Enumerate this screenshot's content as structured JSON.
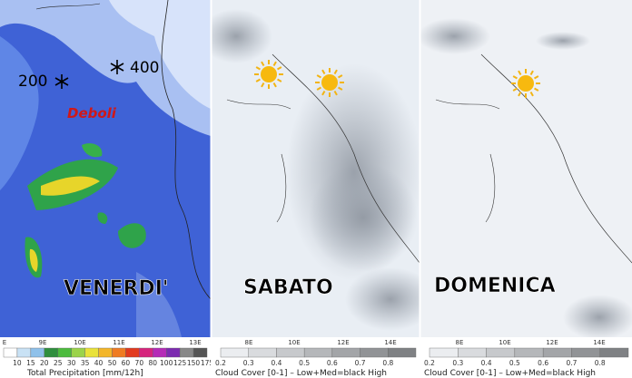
{
  "panels": [
    {
      "day": "VENERDI'",
      "annotations": [
        "200",
        "400",
        "Deboli"
      ],
      "lon_ticks": [
        "E",
        "9E",
        "10E",
        "11E",
        "12E",
        "13E"
      ],
      "colorbar_labels": [
        "10",
        "15",
        "20",
        "25",
        "30",
        "35",
        "40",
        "50",
        "60",
        "70",
        "80",
        "100",
        "125",
        "150",
        "175"
      ],
      "colorbar_title": "Total Precipitation [mm/12h]"
    },
    {
      "day": "SABATO",
      "lon_ticks": [
        "8E",
        "10E",
        "12E",
        "14E"
      ],
      "colorbar_labels": [
        "0.2",
        "0.3",
        "0.4",
        "0.5",
        "0.6",
        "0.7",
        "0.8"
      ],
      "colorbar_title": "Cloud Cover [0-1] – Low+Med=black High"
    },
    {
      "day": "DOMENICA",
      "lon_ticks": [
        "8E",
        "10E",
        "12E",
        "14E"
      ],
      "colorbar_labels": [
        "0.2",
        "0.3",
        "0.4",
        "0.5",
        "0.6",
        "0.7",
        "0.8"
      ],
      "colorbar_title": "Cloud Cover [0-1] – Low+Med=black High"
    }
  ]
}
